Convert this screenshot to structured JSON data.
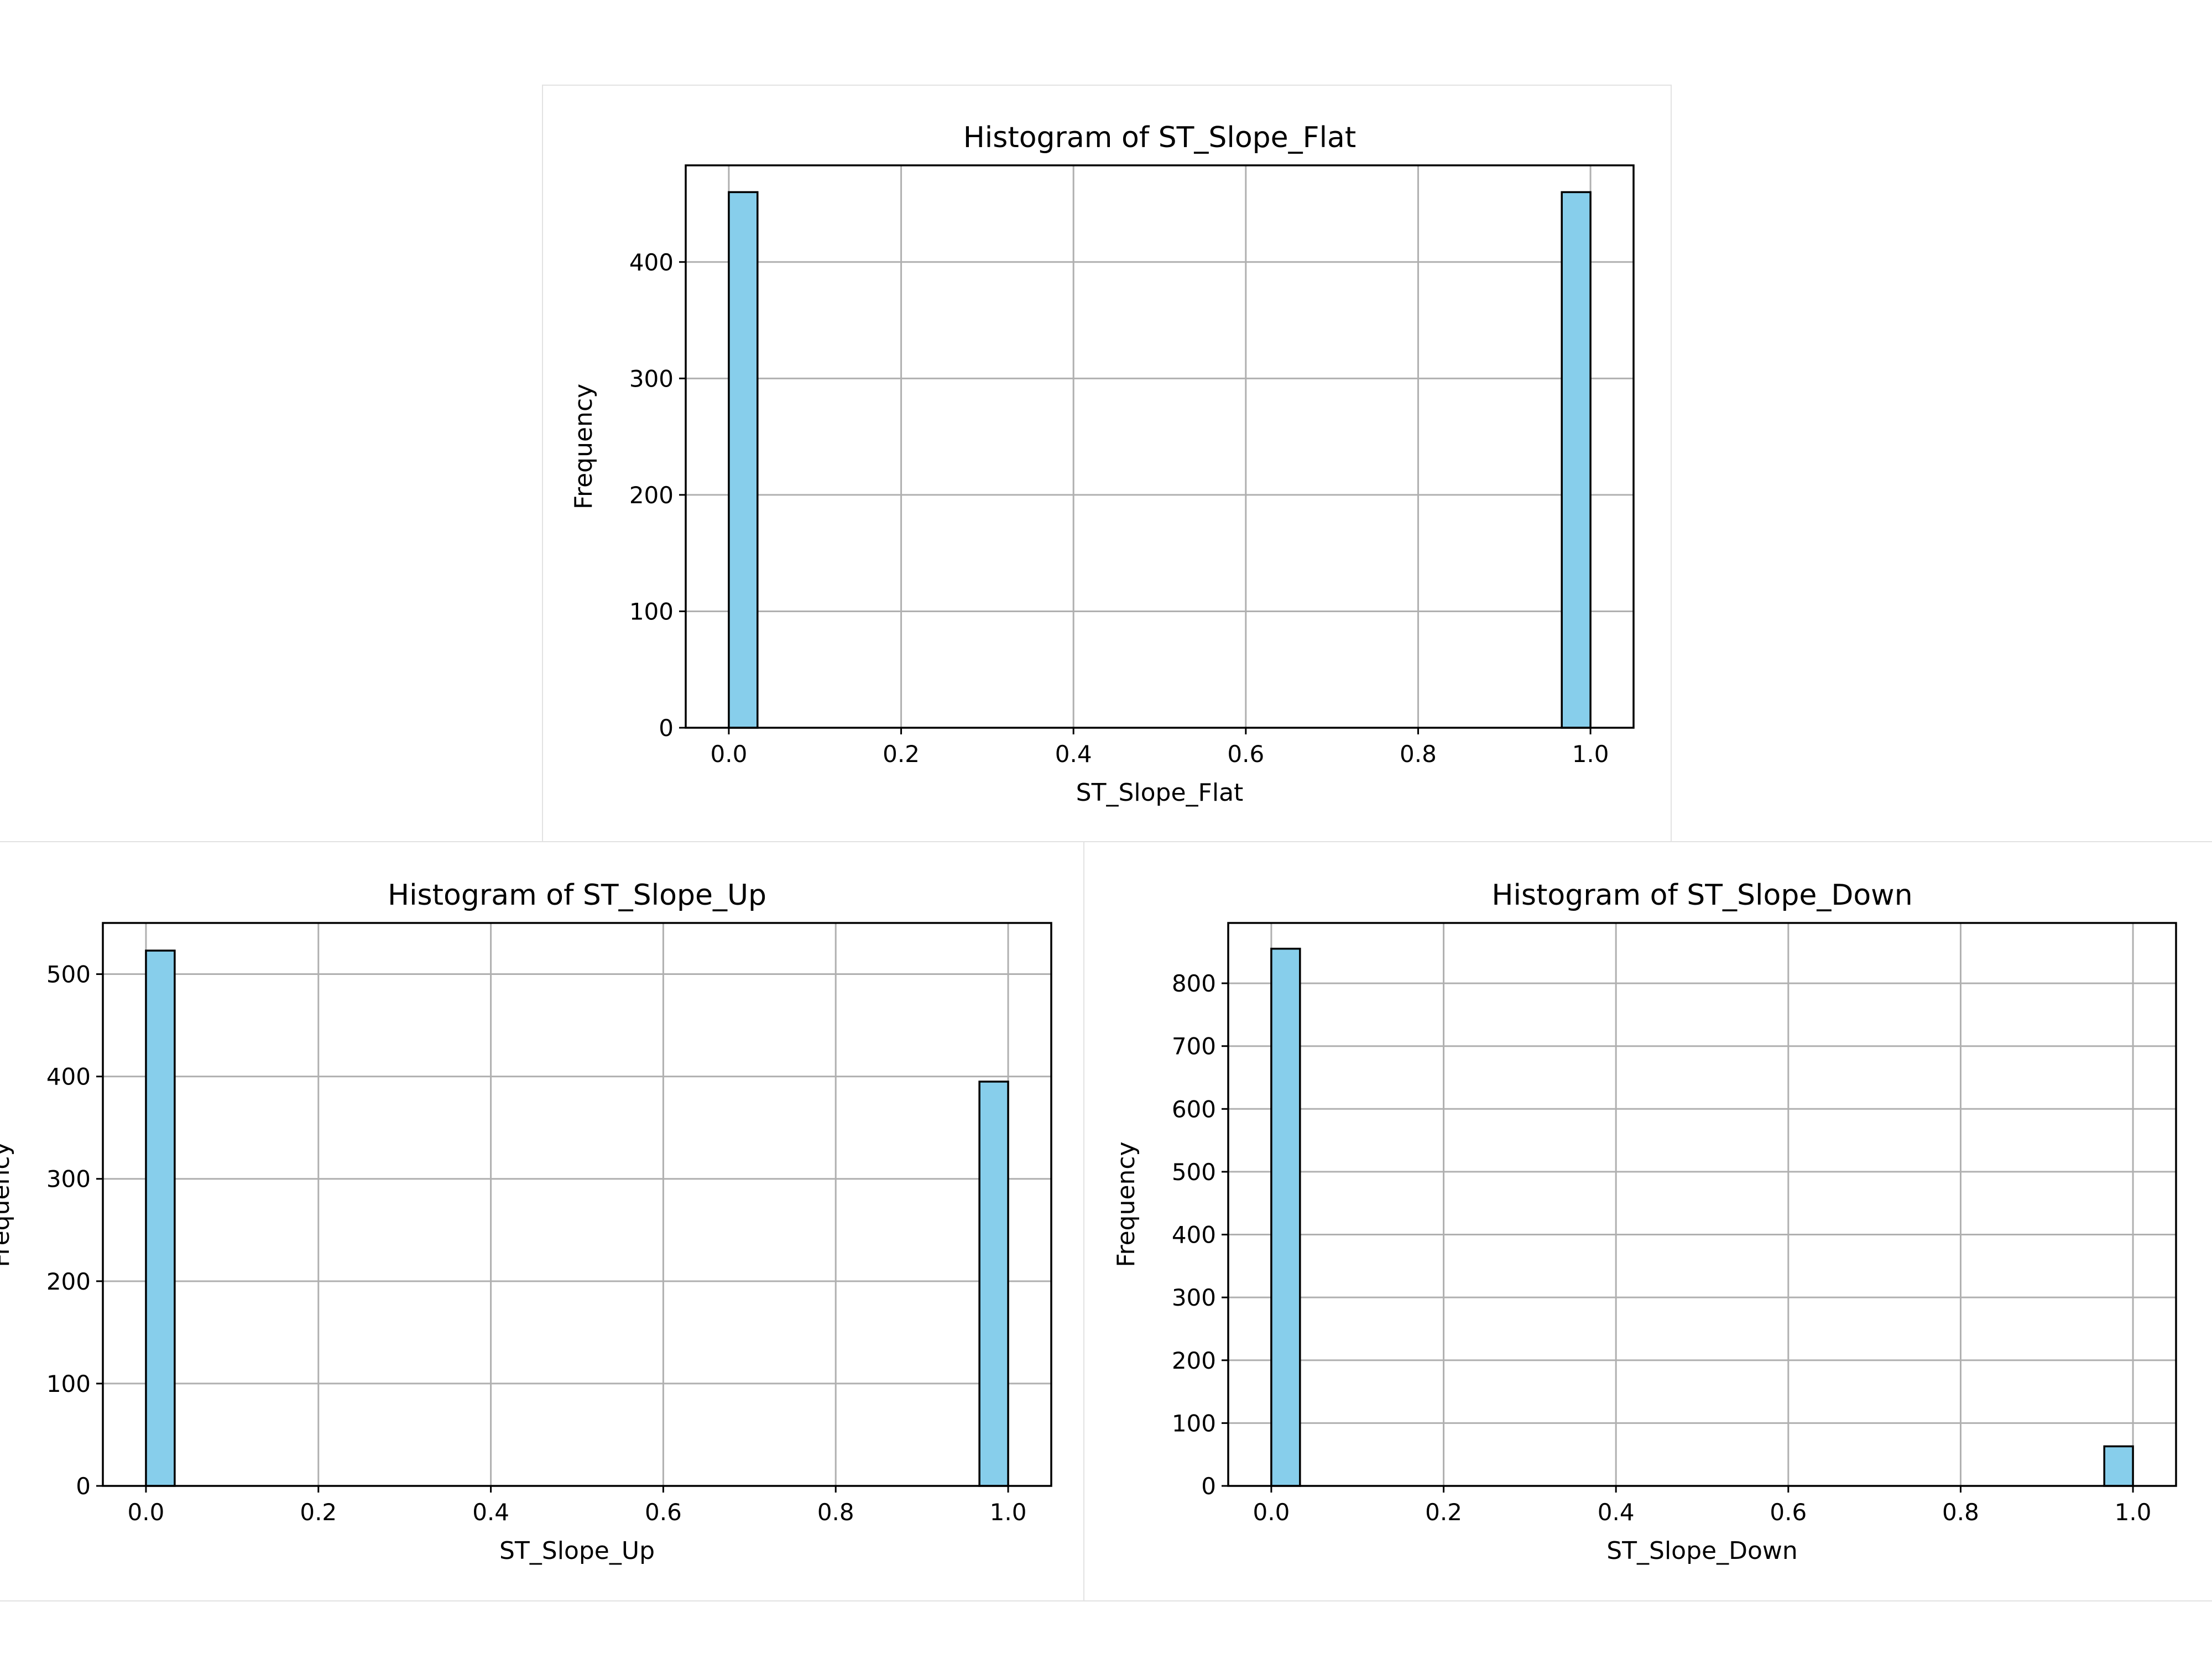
{
  "colors": {
    "bar_fill": "#87ceeb",
    "bar_edge": "#000000",
    "grid": "#b0b0b0",
    "panel_border": "#e2e2e2"
  },
  "chart_data": [
    {
      "type": "bar",
      "title": "Histogram of ST_Slope_Flat",
      "xlabel": "ST_Slope_Flat",
      "ylabel": "Frequency",
      "xlim": [
        -0.05,
        1.05
      ],
      "ylim": [
        0,
        483
      ],
      "xticks": [
        "0.0",
        "0.2",
        "0.4",
        "0.6",
        "0.8",
        "1.0"
      ],
      "yticks": [
        "0",
        "100",
        "200",
        "300",
        "400"
      ],
      "grid": true,
      "bins": [
        {
          "x_start": 0.0,
          "x_end": 0.0333,
          "value": 460
        },
        {
          "x_start": 0.9667,
          "x_end": 1.0,
          "value": 460
        }
      ]
    },
    {
      "type": "bar",
      "title": "Histogram of ST_Slope_Up",
      "xlabel": "ST_Slope_Up",
      "ylabel": "Frequency",
      "xlim": [
        -0.05,
        1.05
      ],
      "ylim": [
        0,
        550
      ],
      "xticks": [
        "0.0",
        "0.2",
        "0.4",
        "0.6",
        "0.8",
        "1.0"
      ],
      "yticks": [
        "0",
        "100",
        "200",
        "300",
        "400",
        "500"
      ],
      "grid": true,
      "bins": [
        {
          "x_start": 0.0,
          "x_end": 0.0333,
          "value": 523
        },
        {
          "x_start": 0.9667,
          "x_end": 1.0,
          "value": 395
        }
      ]
    },
    {
      "type": "bar",
      "title": "Histogram of ST_Slope_Down",
      "xlabel": "ST_Slope_Down",
      "ylabel": "Frequency",
      "xlim": [
        -0.05,
        1.05
      ],
      "ylim": [
        0,
        896
      ],
      "xticks": [
        "0.0",
        "0.2",
        "0.4",
        "0.6",
        "0.8",
        "1.0"
      ],
      "yticks": [
        "0",
        "100",
        "200",
        "300",
        "400",
        "500",
        "600",
        "700",
        "800"
      ],
      "grid": true,
      "bins": [
        {
          "x_start": 0.0,
          "x_end": 0.0333,
          "value": 855
        },
        {
          "x_start": 0.9667,
          "x_end": 1.0,
          "value": 63
        }
      ]
    }
  ]
}
